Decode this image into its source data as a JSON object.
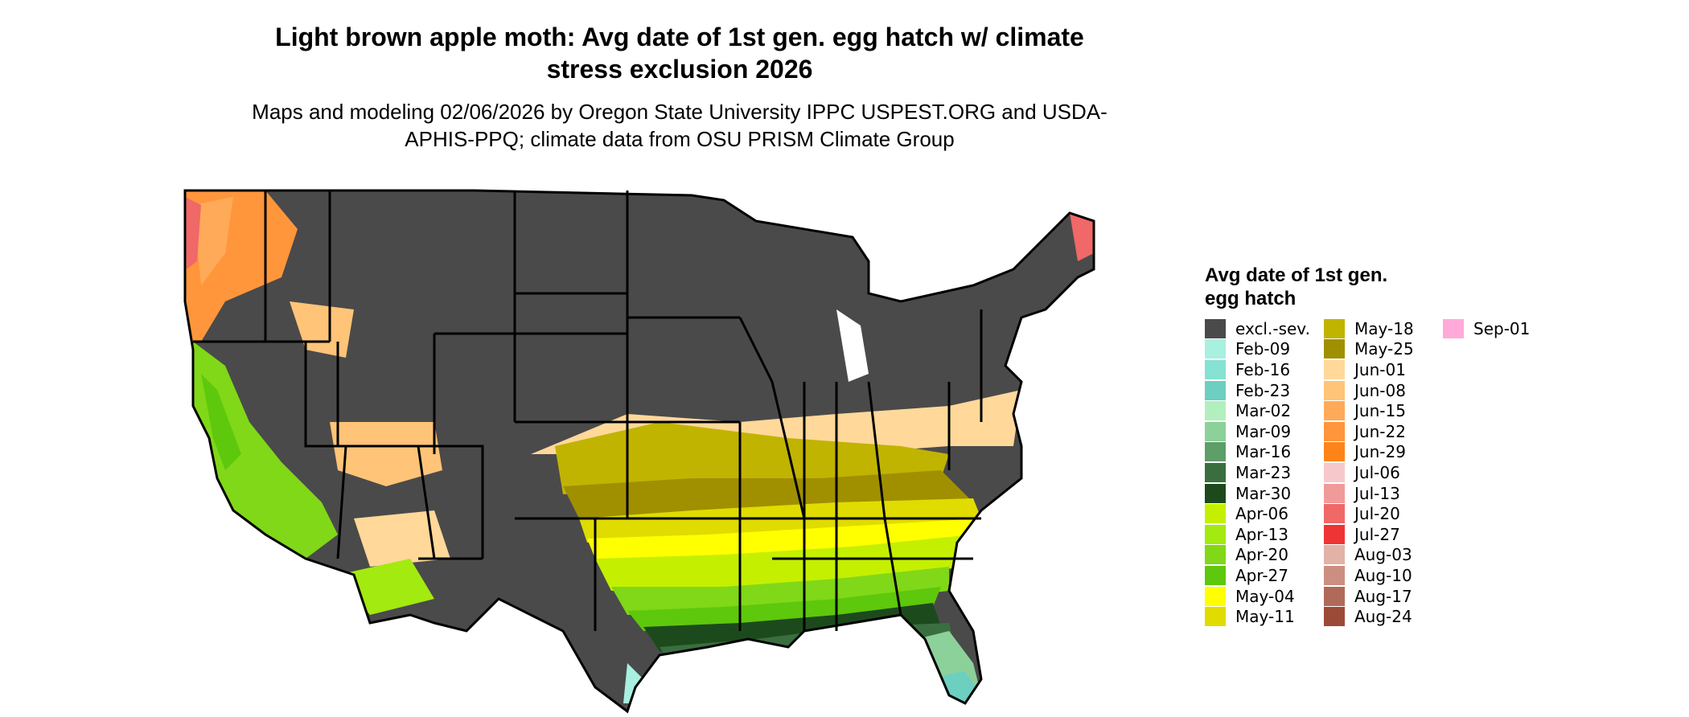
{
  "header": {
    "title": "Light brown apple moth: Avg date of 1st gen. egg hatch w/ climate stress exclusion 2026",
    "subtitle": "Maps and modeling 02/06/2026 by Oregon State University IPPC USPEST.ORG and USDA-APHIS-PPQ; climate data from OSU PRISM Climate Group"
  },
  "legend": {
    "title": "Avg date of 1st gen. egg hatch",
    "items": [
      {
        "label": "excl.-sev.",
        "color": "#4a4a4a"
      },
      {
        "label": "Feb-09",
        "color": "#a8f0e0"
      },
      {
        "label": "Feb-16",
        "color": "#86e2d2"
      },
      {
        "label": "Feb-23",
        "color": "#6ccfc0"
      },
      {
        "label": "Mar-02",
        "color": "#b2efbe"
      },
      {
        "label": "Mar-09",
        "color": "#8cd09a"
      },
      {
        "label": "Mar-16",
        "color": "#5e9e68"
      },
      {
        "label": "Mar-23",
        "color": "#3a6e40"
      },
      {
        "label": "Mar-30",
        "color": "#1d4a1d"
      },
      {
        "label": "Apr-06",
        "color": "#c4f000"
      },
      {
        "label": "Apr-13",
        "color": "#a2ea10"
      },
      {
        "label": "Apr-20",
        "color": "#80d818"
      },
      {
        "label": "Apr-27",
        "color": "#5ec80c"
      },
      {
        "label": "May-04",
        "color": "#ffff00"
      },
      {
        "label": "May-11",
        "color": "#e0dc00"
      },
      {
        "label": "May-18",
        "color": "#c0b400"
      },
      {
        "label": "May-25",
        "color": "#a09000"
      },
      {
        "label": "Jun-01",
        "color": "#ffd89a"
      },
      {
        "label": "Jun-08",
        "color": "#ffc478"
      },
      {
        "label": "Jun-15",
        "color": "#ffaa58"
      },
      {
        "label": "Jun-22",
        "color": "#ff963c"
      },
      {
        "label": "Jun-29",
        "color": "#ff8418"
      },
      {
        "label": "Jul-06",
        "color": "#f6c8cc"
      },
      {
        "label": "Jul-13",
        "color": "#f29a9a"
      },
      {
        "label": "Jul-20",
        "color": "#f06868"
      },
      {
        "label": "Jul-27",
        "color": "#ee3434"
      },
      {
        "label": "Aug-03",
        "color": "#e2b2a6"
      },
      {
        "label": "Aug-10",
        "color": "#cc8e80"
      },
      {
        "label": "Aug-17",
        "color": "#b06a5a"
      },
      {
        "label": "Aug-24",
        "color": "#9c4a38"
      },
      {
        "label": "Sep-01",
        "color": "#ffaad8"
      }
    ]
  }
}
